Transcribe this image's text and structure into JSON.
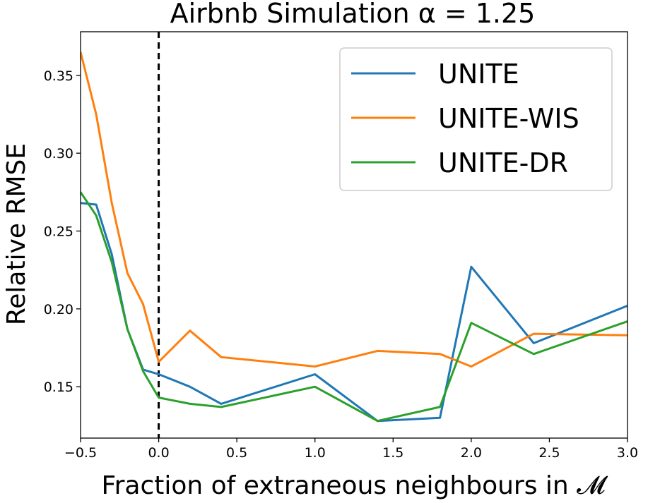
{
  "chart_data": {
    "type": "line",
    "title": "Airbnb Simulation α = 1.25",
    "xlabel": "Fraction of extraneous neighbours in 𝓜",
    "ylabel": "Relative RMSE",
    "xlim": [
      -0.5,
      3.0
    ],
    "ylim": [
      0.117,
      0.378
    ],
    "xticks": [
      "−0.5",
      "0.0",
      "0.5",
      "1.0",
      "1.5",
      "2.0",
      "2.5",
      "3.0"
    ],
    "xtick_values": [
      -0.5,
      0.0,
      0.5,
      1.0,
      1.5,
      2.0,
      2.5,
      3.0
    ],
    "yticks": [
      "0.15",
      "0.20",
      "0.25",
      "0.30",
      "0.35"
    ],
    "ytick_values": [
      0.15,
      0.2,
      0.25,
      0.3,
      0.35
    ],
    "vline": {
      "x": 0.0,
      "style": "dashed",
      "color": "#000000"
    },
    "legend_position": "top-right",
    "grid": false,
    "series": [
      {
        "name": "UNITE",
        "color": "#1f77b4",
        "x": [
          -0.5,
          -0.4,
          -0.3,
          -0.2,
          -0.1,
          0.0,
          0.2,
          0.4,
          1.0,
          1.4,
          1.8,
          2.0,
          2.4,
          3.0
        ],
        "y": [
          0.268,
          0.267,
          0.235,
          0.187,
          0.161,
          0.158,
          0.15,
          0.139,
          0.158,
          0.128,
          0.13,
          0.227,
          0.178,
          0.202
        ]
      },
      {
        "name": "UNITE-WIS",
        "color": "#ff7f0e",
        "x": [
          -0.5,
          -0.4,
          -0.3,
          -0.2,
          -0.1,
          0.0,
          0.2,
          0.4,
          1.0,
          1.4,
          1.8,
          2.0,
          2.4,
          3.0
        ],
        "y": [
          0.365,
          0.325,
          0.268,
          0.223,
          0.203,
          0.166,
          0.186,
          0.169,
          0.163,
          0.173,
          0.171,
          0.163,
          0.184,
          0.183
        ]
      },
      {
        "name": "UNITE-DR",
        "color": "#2ca02c",
        "x": [
          -0.5,
          -0.4,
          -0.3,
          -0.2,
          -0.1,
          0.0,
          0.2,
          0.4,
          1.0,
          1.4,
          1.8,
          2.0,
          2.4,
          3.0
        ],
        "y": [
          0.275,
          0.26,
          0.23,
          0.187,
          0.16,
          0.143,
          0.139,
          0.137,
          0.15,
          0.128,
          0.137,
          0.191,
          0.171,
          0.192
        ]
      }
    ]
  }
}
